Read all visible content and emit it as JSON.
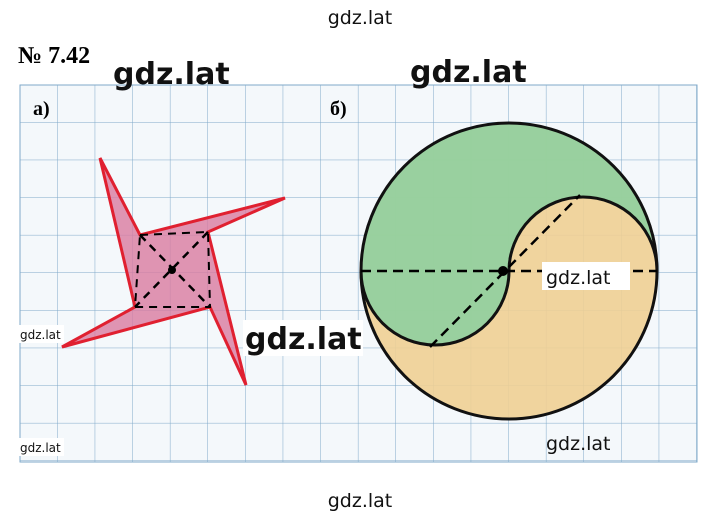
{
  "header": {
    "number": "№ 7.42"
  },
  "figures": [
    {
      "label": "а)"
    },
    {
      "label": "б)"
    }
  ],
  "watermarks": [
    "gdz.lat",
    "gdz.lat",
    "gdz.lat",
    "gdz.lat",
    "gdz.lat",
    "gdz.lat",
    "gdz.lat",
    "gdz.lat",
    "gdz.lat"
  ]
}
